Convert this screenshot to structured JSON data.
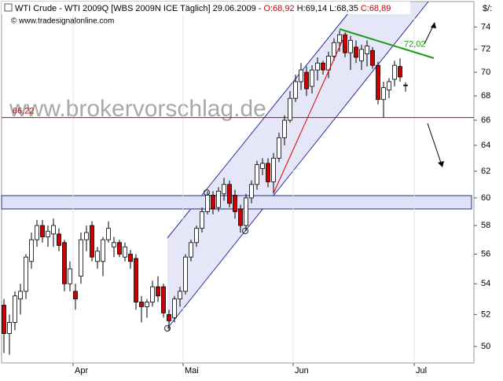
{
  "chart_data": {
    "type": "candlestick",
    "header": {
      "instrument": "WTI Crude - WTI 2009Q [WBS 2009N ICE  Täglich] 29.06.2009 -",
      "open": "O:68,92",
      "high": "H:69,14",
      "low": "L:68,35",
      "close": "C:68,89"
    },
    "source": "© www.tradesignalonline.com",
    "watermark": "www.brokervorschlag.de",
    "unit_label": "$/:",
    "categories": [
      null,
      null,
      null,
      null,
      null,
      null,
      null,
      null,
      null,
      null,
      null,
      null,
      null,
      "Apr",
      null,
      null,
      null,
      null,
      null,
      null,
      null,
      null,
      null,
      null,
      null,
      null,
      null,
      null,
      null,
      null,
      null,
      null,
      null,
      "Mai",
      null,
      null,
      null,
      null,
      null,
      null,
      null,
      null,
      null,
      null,
      null,
      null,
      null,
      null,
      null,
      null,
      null,
      null,
      null,
      "Jun",
      null,
      null,
      null,
      null,
      null,
      null,
      null,
      null,
      null,
      null,
      null,
      null,
      null,
      null,
      null,
      null,
      null,
      null,
      null,
      null,
      null,
      "Jul"
    ],
    "open": [
      52.6,
      50.8,
      51.5,
      53,
      53.5,
      55.5,
      57,
      58,
      57.2,
      57.4,
      57.4,
      56.8,
      54,
      53.5,
      54.5,
      57,
      58,
      55.5,
      55.5,
      57,
      56.5,
      56.8,
      55.8,
      56,
      55.7,
      52.8,
      52.5,
      52.8,
      53.8,
      53.8,
      52,
      51.8,
      53,
      53.5,
      55.8,
      56.8,
      57.8,
      59,
      60.2,
      59.3,
      60.3,
      61,
      60.2,
      59.2,
      58,
      60,
      61,
      62.2,
      62.6,
      61.2,
      63,
      64.6,
      66,
      67.8,
      69.2,
      70,
      68.8,
      70.2,
      70.8,
      70.2,
      71.4,
      72.6,
      73.3,
      71.7,
      72.2,
      71,
      71.6,
      71.9,
      70.6,
      67.7,
      68.5,
      69.4,
      70.5,
      68.92,
      null,
      null
    ],
    "high": [
      53,
      52,
      53.5,
      54,
      56,
      57.5,
      58.4,
      58.4,
      58,
      58.5,
      57.8,
      57,
      55.5,
      54,
      57.5,
      58,
      58.3,
      56.5,
      57.2,
      58.3,
      57.2,
      57,
      56.8,
      56.3,
      56,
      53.2,
      53,
      54.2,
      54.5,
      54,
      52.3,
      53.2,
      53.8,
      56,
      57,
      58,
      59.3,
      60.5,
      60.5,
      60.8,
      61.5,
      61.3,
      60.6,
      59.5,
      60.3,
      61.3,
      62.8,
      63,
      63,
      63.4,
      65,
      66.4,
      68.4,
      69.8,
      70.8,
      70.5,
      70.6,
      71.3,
      71,
      71.8,
      73,
      73.7,
      73.5,
      73.2,
      72.8,
      72.4,
      72.8,
      72.2,
      70.9,
      69.2,
      69.5,
      71,
      71.2,
      69.14,
      null,
      null
    ],
    "low": [
      49.6,
      49.5,
      51,
      52,
      53,
      55,
      56.5,
      56.8,
      56.5,
      56.5,
      56.2,
      53.5,
      53.5,
      52.3,
      54,
      56.2,
      55.5,
      55,
      54.5,
      56.8,
      55.8,
      55.8,
      55.5,
      55,
      52.3,
      51.5,
      51.8,
      52.5,
      52.8,
      51.8,
      51,
      51.5,
      52.5,
      53.3,
      55.5,
      56.5,
      57.5,
      58.8,
      58.8,
      59,
      59.8,
      59.3,
      58.5,
      57.5,
      57.6,
      59.6,
      60.6,
      61.7,
      60.8,
      60.3,
      62.7,
      64,
      65.8,
      67.5,
      68.5,
      68,
      68.2,
      69.3,
      69.8,
      69.5,
      71,
      71.8,
      71.3,
      70.2,
      70.8,
      70.2,
      70.5,
      70.3,
      67.3,
      66.2,
      67.8,
      68.8,
      69.2,
      68.35,
      null,
      null
    ],
    "close": [
      50.8,
      51.5,
      53.2,
      53.5,
      55.8,
      57,
      58,
      57.2,
      57.6,
      58,
      56.6,
      54,
      55,
      53,
      57,
      57.5,
      55.8,
      56.2,
      57,
      57.8,
      56.8,
      56,
      56.5,
      55.5,
      52.8,
      52.5,
      52.8,
      53.8,
      53.2,
      52.1,
      51.6,
      53,
      53.5,
      55.8,
      56.8,
      57.8,
      59,
      60.2,
      59.2,
      60.5,
      61,
      59.6,
      59,
      58,
      60,
      61,
      62.5,
      62.6,
      61.2,
      63,
      64.6,
      66,
      67.8,
      69.2,
      70.2,
      68.6,
      70.2,
      70.8,
      70.2,
      71.4,
      72.6,
      73.3,
      71.7,
      72.8,
      71.3,
      72,
      72.3,
      70.6,
      67.7,
      68.7,
      69.2,
      70.6,
      69.6,
      68.89,
      null,
      null
    ],
    "up_color": "#ffffff",
    "down_color": "#cc0000",
    "log_scale": true,
    "ylim": [
      49,
      76.2
    ],
    "yticks": [
      50,
      52,
      54,
      56,
      58,
      60,
      62,
      64,
      66,
      68,
      70,
      72,
      74
    ],
    "support_line": {
      "value": 66.22,
      "label": "66,22",
      "color": "#cc0000"
    },
    "trend_label": {
      "value": 72.02,
      "label": "72,02",
      "color": "#1a9a1a"
    }
  }
}
